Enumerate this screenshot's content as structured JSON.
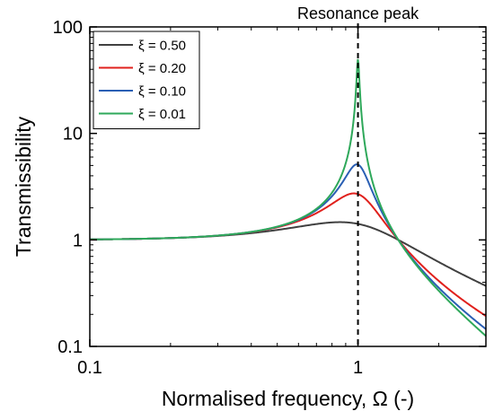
{
  "chart_data": {
    "type": "line",
    "xlabel": "Normalised frequency, Ω (-)",
    "ylabel": "Transmissibility",
    "xscale": "log",
    "yscale": "log",
    "xlim": [
      0.1,
      3
    ],
    "ylim": [
      0.1,
      100
    ],
    "xticks": [
      {
        "value": 0.1,
        "label": "0.1"
      },
      {
        "value": 1,
        "label": "1"
      }
    ],
    "yticks": [
      {
        "value": 0.1,
        "label": "0.1"
      },
      {
        "value": 1,
        "label": "1"
      },
      {
        "value": 10,
        "label": "10"
      },
      {
        "value": 100,
        "label": "100"
      }
    ],
    "grid": false,
    "legend_position": "top-left",
    "annotation": {
      "text": "Resonance peak",
      "x": 1
    },
    "series": [
      {
        "name": "ξ = 0.50",
        "color": "#404040",
        "zeta": 0.5,
        "x": [
          0.1,
          0.2,
          0.3,
          0.5,
          0.7,
          0.86,
          1.0,
          1.2,
          1.41,
          2.0,
          3.0
        ],
        "y": [
          1.01,
          1.04,
          1.08,
          1.22,
          1.37,
          1.44,
          1.41,
          1.27,
          1.0,
          0.62,
          0.36
        ]
      },
      {
        "name": "ξ = 0.20",
        "color": "#e0201c",
        "zeta": 0.2,
        "x": [
          0.1,
          0.2,
          0.3,
          0.5,
          0.7,
          0.9,
          0.98,
          1.0,
          1.2,
          1.41,
          2.0,
          3.0
        ],
        "y": [
          1.01,
          1.04,
          1.1,
          1.32,
          1.88,
          2.8,
          2.74,
          2.69,
          1.71,
          1.0,
          0.43,
          0.19
        ]
      },
      {
        "name": "ξ = 0.10",
        "color": "#2a5fb4",
        "zeta": 0.1,
        "x": [
          0.1,
          0.2,
          0.3,
          0.5,
          0.7,
          0.9,
          0.99,
          1.0,
          1.2,
          1.41,
          2.0,
          3.0
        ],
        "y": [
          1.01,
          1.04,
          1.1,
          1.33,
          1.95,
          4.0,
          5.07,
          5.1,
          2.07,
          1.0,
          0.36,
          0.14
        ]
      },
      {
        "name": "ξ = 0.01",
        "color": "#2ea85a",
        "zeta": 0.01,
        "x": [
          0.1,
          0.2,
          0.3,
          0.5,
          0.7,
          0.9,
          0.97,
          1.0,
          1.03,
          1.2,
          1.41,
          2.0,
          3.0
        ],
        "y": [
          1.01,
          1.04,
          1.1,
          1.33,
          1.96,
          5.26,
          16.6,
          50.0,
          16.8,
          2.27,
          1.0,
          0.33,
          0.13
        ]
      }
    ]
  }
}
